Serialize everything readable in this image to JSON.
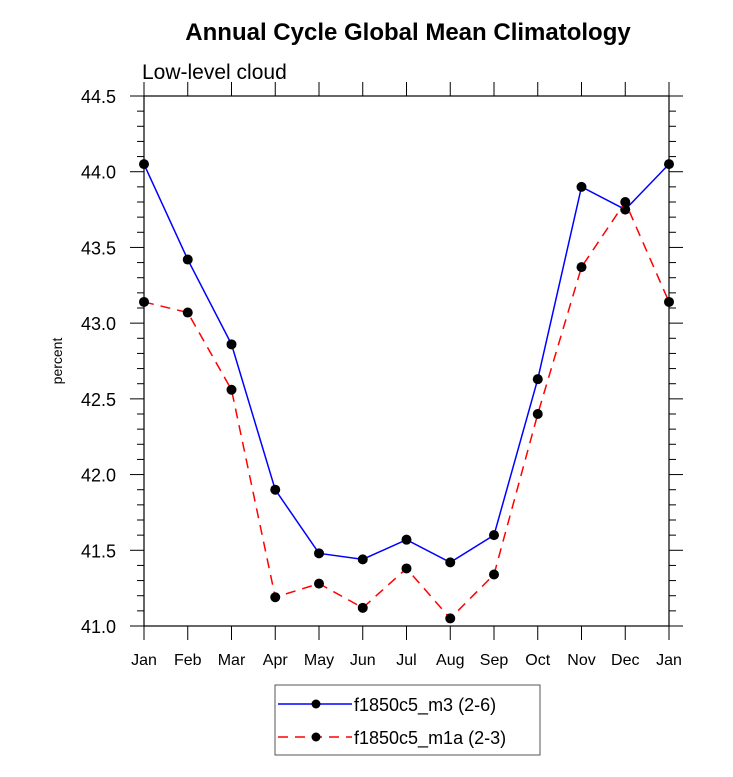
{
  "chart_data": {
    "type": "line",
    "title": "Annual Cycle Global Mean Climatology",
    "subtitle": "Low-level cloud",
    "xlabel": "",
    "ylabel": "percent",
    "ylim": [
      41.0,
      44.5
    ],
    "yticks": [
      41.0,
      41.5,
      42.0,
      42.5,
      43.0,
      43.5,
      44.0,
      44.5
    ],
    "ytick_labels": [
      "41.0",
      "41.5",
      "42.0",
      "42.5",
      "43.0",
      "43.5",
      "44.0",
      "44.5"
    ],
    "y_minor_step": 0.1,
    "categories": [
      "Jan",
      "Feb",
      "Mar",
      "Apr",
      "May",
      "Jun",
      "Jul",
      "Aug",
      "Sep",
      "Oct",
      "Nov",
      "Dec",
      "Jan"
    ],
    "grid": false,
    "legend_position": "bottom-center",
    "series": [
      {
        "name": "f1850c5_m3 (2-6)",
        "color": "#0000ff",
        "dash": "solid",
        "marker": "filled-circle",
        "values": [
          44.05,
          43.42,
          42.86,
          41.9,
          41.48,
          41.44,
          41.57,
          41.42,
          41.6,
          42.63,
          43.9,
          43.75,
          44.05
        ]
      },
      {
        "name": "f1850c5_m1a (2-3)",
        "color": "#ff0000",
        "dash": "dashed",
        "marker": "filled-circle",
        "values": [
          43.14,
          43.07,
          42.56,
          41.19,
          41.28,
          41.12,
          41.38,
          41.05,
          41.34,
          42.4,
          43.37,
          43.8,
          43.14
        ]
      }
    ]
  }
}
